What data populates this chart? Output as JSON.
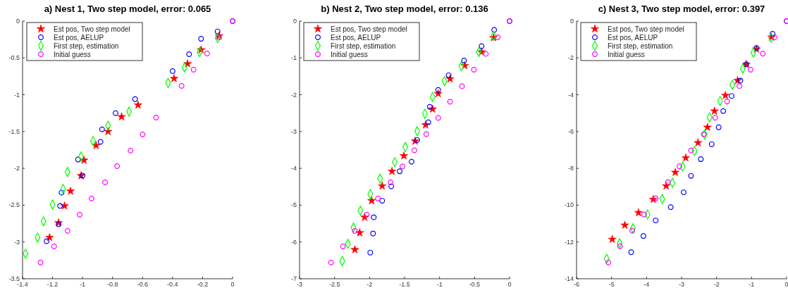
{
  "chart_data": [
    {
      "type": "scatter",
      "title": "a) Nest 1, Two step model, error: 0.065",
      "legend": "top left",
      "xlim": [
        -1.4,
        0
      ],
      "ylim": [
        -3.5,
        0
      ],
      "xticks": [
        -1.4,
        -1.2,
        -1,
        -0.8,
        -0.6,
        -0.4,
        -0.2,
        0
      ],
      "yticks": [
        -3.5,
        -3,
        -2.5,
        -2,
        -1.5,
        -1,
        -0.5,
        0
      ],
      "series": [
        {
          "name": "Est pos, Two step model",
          "color": "#ff0000",
          "marker": "star",
          "x": [
            -0.09,
            -0.21,
            -0.3,
            -0.39,
            -0.63,
            -0.74,
            -0.83,
            -0.91,
            -0.99,
            -1.01,
            -1.08,
            -1.12,
            -1.16,
            -1.22
          ],
          "values": [
            -0.2,
            -0.39,
            -0.58,
            -0.78,
            -1.14,
            -1.3,
            -1.5,
            -1.69,
            -1.89,
            -2.1,
            -2.31,
            -2.51,
            -2.74,
            -2.94
          ]
        },
        {
          "name": "Est pos, AELUP",
          "color": "#0000ff",
          "marker": "circle",
          "x": [
            0,
            -0.1,
            -0.21,
            -0.29,
            -0.4,
            -0.65,
            -0.78,
            -0.87,
            -0.88,
            -1.03,
            -1,
            -1.14,
            -1.15,
            -1.16,
            -1.24
          ],
          "values": [
            0,
            -0.14,
            -0.24,
            -0.45,
            -0.68,
            -1.06,
            -1.25,
            -1.47,
            -1.64,
            -1.88,
            -2.1,
            -2.33,
            -2.51,
            -2.76,
            -2.99
          ]
        },
        {
          "name": "First step, estimation",
          "color": "#00ff00",
          "marker": "diamond",
          "x": [
            -0.1,
            -0.22,
            -0.32,
            -0.43,
            -0.69,
            -0.83,
            -0.93,
            -1.01,
            -1.1,
            -1.13,
            -1.2,
            -1.26,
            -1.3,
            -1.38
          ],
          "values": [
            -0.23,
            -0.42,
            -0.63,
            -0.84,
            -1.23,
            -1.42,
            -1.63,
            -1.84,
            -2.05,
            -2.28,
            -2.49,
            -2.72,
            -2.94,
            -3.16
          ]
        },
        {
          "name": "Initial guess",
          "color": "#ff00ff",
          "marker": "circle",
          "x": [
            0,
            -0.09,
            -0.17,
            -0.26,
            -0.34,
            -0.51,
            -0.6,
            -0.68,
            -0.77,
            -0.85,
            -0.94,
            -1.02,
            -1.1,
            -1.19,
            -1.28
          ],
          "values": [
            0,
            -0.22,
            -0.44,
            -0.66,
            -0.88,
            -1.31,
            -1.54,
            -1.76,
            -1.97,
            -2.19,
            -2.41,
            -2.63,
            -2.85,
            -3.06,
            -3.28
          ]
        }
      ]
    },
    {
      "type": "scatter",
      "title": "b) Nest 2, Two step model, error: 0.136",
      "legend": "top left",
      "xlim": [
        -3,
        0
      ],
      "ylim": [
        -7,
        0
      ],
      "xticks": [
        -3,
        -2.5,
        -2,
        -1.5,
        -1,
        -0.5,
        0
      ],
      "yticks": [
        -7,
        -6,
        -5,
        -4,
        -3,
        -2,
        -1,
        0
      ],
      "series": [
        {
          "name": "Est pos, Two step model",
          "color": "#ff0000",
          "marker": "star",
          "x": [
            -0.23,
            -0.4,
            -0.64,
            -0.85,
            -1.02,
            -1.1,
            -1.2,
            -1.35,
            -1.51,
            -1.68,
            -1.82,
            -1.97,
            -2.07,
            -2.14,
            -2.21
          ],
          "values": [
            -0.45,
            -0.84,
            -1.21,
            -1.57,
            -1.97,
            -2.39,
            -2.82,
            -3.26,
            -3.66,
            -4.08,
            -4.48,
            -4.88,
            -5.33,
            -5.75,
            -6.21
          ]
        },
        {
          "name": "Est pos, AELUP",
          "color": "#0000ff",
          "marker": "circle",
          "x": [
            0,
            -0.22,
            -0.4,
            -0.65,
            -0.87,
            -1.02,
            -1.14,
            -1.16,
            -1.32,
            -1.4,
            -1.57,
            -1.69,
            -1.82,
            -1.94,
            -1.95,
            -1.99
          ],
          "values": [
            0,
            -0.24,
            -0.68,
            -1.07,
            -1.47,
            -1.87,
            -2.33,
            -2.75,
            -3.23,
            -3.82,
            -4.08,
            -4.49,
            -4.88,
            -5.33,
            -5.77,
            -6.29
          ]
        },
        {
          "name": "First step, estimation",
          "color": "#00ff00",
          "marker": "diamond",
          "x": [
            -0.23,
            -0.44,
            -0.69,
            -0.93,
            -1.1,
            -1.21,
            -1.32,
            -1.49,
            -1.64,
            -1.85,
            -1.99,
            -2.13,
            -2.23,
            -2.31,
            -2.39
          ],
          "values": [
            -0.4,
            -0.84,
            -1.23,
            -1.63,
            -2.06,
            -2.52,
            -2.99,
            -3.42,
            -3.83,
            -4.28,
            -4.7,
            -5.15,
            -5.61,
            -6.05,
            -6.52
          ]
        },
        {
          "name": "Initial guess",
          "color": "#ff00ff",
          "marker": "circle",
          "x": [
            0,
            -0.17,
            -0.34,
            -0.51,
            -0.68,
            -0.85,
            -1.02,
            -1.19,
            -1.36,
            -1.53,
            -1.7,
            -1.88,
            -2.04,
            -2.21,
            -2.38,
            -2.55
          ],
          "values": [
            0,
            -0.44,
            -0.89,
            -1.32,
            -1.77,
            -2.19,
            -2.63,
            -3.07,
            -3.51,
            -3.95,
            -4.38,
            -4.82,
            -5.26,
            -5.7,
            -6.12,
            -6.56
          ]
        }
      ]
    },
    {
      "type": "scatter",
      "title": "c) Nest 3, Two step model, error: 0.397",
      "legend": "top left",
      "xlim": [
        -6,
        0
      ],
      "ylim": [
        -14,
        0
      ],
      "xticks": [
        -6,
        -5,
        -4,
        -3,
        -2,
        -1,
        0
      ],
      "yticks": [
        -14,
        -12,
        -10,
        -8,
        -6,
        -4,
        -2,
        0
      ],
      "series": [
        {
          "name": "Est pos, Two step model",
          "color": "#ff0000",
          "marker": "star",
          "x": [
            -0.43,
            -0.86,
            -1.15,
            -1.4,
            -1.75,
            -2.06,
            -2.26,
            -2.53,
            -2.88,
            -3.18,
            -3.44,
            -3.81,
            -4.23,
            -4.62,
            -4.98
          ],
          "values": [
            -0.87,
            -1.52,
            -2.35,
            -3.23,
            -4.04,
            -4.89,
            -5.77,
            -6.61,
            -7.43,
            -8.22,
            -8.96,
            -9.69,
            -10.41,
            -11.09,
            -11.86
          ]
        },
        {
          "name": "Est pos, AELUP",
          "color": "#0000ff",
          "marker": "circle",
          "x": [
            0,
            -0.4,
            -0.86,
            -1.15,
            -1.32,
            -1.57,
            -1.81,
            -1.94,
            -2.14,
            -2.45,
            -2.73,
            -2.94,
            -3.31,
            -3.74,
            -4.09,
            -4.44
          ],
          "values": [
            0,
            -0.69,
            -1.46,
            -2.35,
            -3.23,
            -4.07,
            -4.89,
            -5.77,
            -6.69,
            -7.5,
            -8.41,
            -9.3,
            -10.11,
            -10.83,
            -11.68,
            -12.56
          ]
        },
        {
          "name": "First step, estimation",
          "color": "#00ff00",
          "marker": "diamond",
          "x": [
            -0.44,
            -0.95,
            -1.25,
            -1.55,
            -1.9,
            -2.2,
            -2.34,
            -2.63,
            -2.97,
            -3.26,
            -3.55,
            -3.97,
            -4.39,
            -4.77,
            -5.14
          ],
          "values": [
            -0.91,
            -1.71,
            -2.58,
            -3.46,
            -4.34,
            -5.23,
            -6.16,
            -7.06,
            -7.91,
            -8.79,
            -9.67,
            -10.51,
            -11.26,
            -12.07,
            -12.92
          ]
        },
        {
          "name": "Initial guess",
          "color": "#ff00ff",
          "marker": "circle",
          "x": [
            0,
            -0.34,
            -0.68,
            -1.03,
            -1.35,
            -1.7,
            -2.04,
            -2.37,
            -2.73,
            -3.06,
            -3.39,
            -3.74,
            -4.07,
            -4.41,
            -4.76,
            -5.09
          ],
          "values": [
            0,
            -0.88,
            -1.77,
            -2.64,
            -3.53,
            -4.37,
            -5.25,
            -6.15,
            -7.03,
            -7.89,
            -8.75,
            -9.63,
            -10.51,
            -11.39,
            -12.23,
            -13.12
          ]
        }
      ]
    }
  ]
}
